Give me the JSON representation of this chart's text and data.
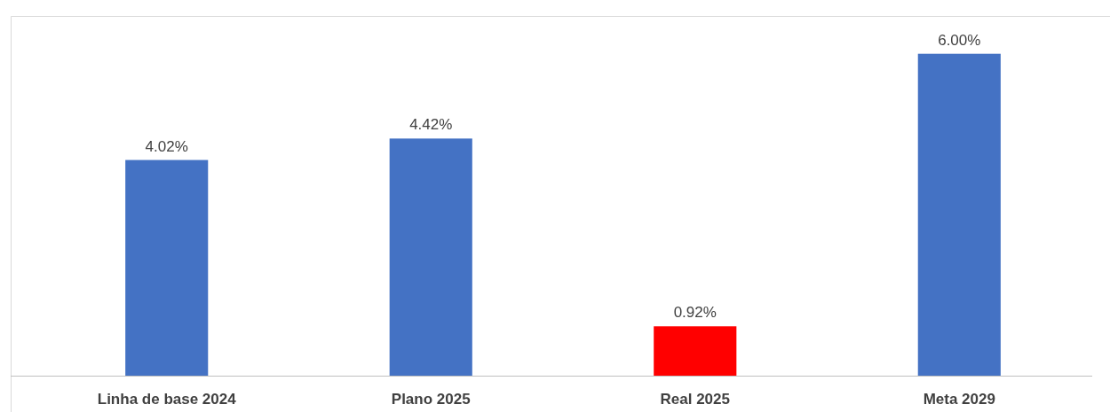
{
  "chart_data": {
    "type": "bar",
    "categories": [
      "Linha de base 2024",
      "Plano 2025",
      "Real 2025",
      "Meta 2029"
    ],
    "values": [
      4.02,
      4.42,
      0.92,
      6.0
    ],
    "colors": [
      "#4472c4",
      "#4472c4",
      "#ff0000",
      "#4472c4"
    ],
    "value_labels": [
      "4.02%",
      "4.42%",
      "0.92%",
      "6.00%"
    ]
  }
}
